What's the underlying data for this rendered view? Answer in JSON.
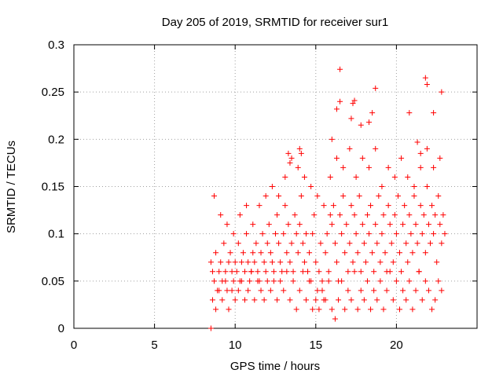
{
  "chart_data": {
    "type": "scatter",
    "title": "Day 205 of 2019, SRMTID for receiver sur1",
    "xlabel": "GPS time / hours",
    "ylabel": "SRMTID / TECUs",
    "xlim": [
      0,
      25
    ],
    "ylim": [
      0,
      0.3
    ],
    "xticks": [
      0,
      5,
      10,
      15,
      20
    ],
    "yticks": [
      0,
      0.05,
      0.1,
      0.15,
      0.2,
      0.25,
      0.3
    ],
    "xtick_labels": [
      "0",
      "5",
      "10",
      "15",
      "20"
    ],
    "ytick_labels": [
      "0",
      "0.05",
      "0.1",
      "0.15",
      "0.2",
      "0.25",
      "0.3"
    ],
    "grid": true,
    "marker": "+",
    "color": "#ff0000",
    "series": [
      {
        "name": "sur1",
        "x": [
          8.5,
          8.6,
          8.7,
          8.8,
          8.9,
          9.0,
          9.1,
          9.2,
          9.3,
          9.4,
          9.5,
          9.6,
          9.7,
          9.8,
          9.9,
          10.0,
          10.1,
          10.2,
          10.3,
          10.4,
          10.5,
          10.6,
          10.7,
          10.8,
          10.9,
          11.0,
          11.1,
          11.2,
          11.3,
          11.4,
          11.5,
          11.6,
          11.7,
          11.8,
          11.9,
          12.0,
          12.1,
          12.2,
          12.3,
          12.4,
          12.5,
          12.6,
          12.7,
          12.8,
          12.9,
          13.0,
          13.1,
          13.2,
          13.3,
          13.4,
          13.5,
          13.6,
          13.7,
          13.8,
          13.9,
          14.0,
          14.1,
          14.2,
          14.3,
          14.4,
          14.5,
          14.6,
          14.7,
          14.8,
          14.9,
          15.0,
          15.1,
          15.2,
          15.3,
          15.4,
          15.5,
          15.6,
          15.7,
          15.8,
          15.9,
          16.0,
          16.1,
          16.2,
          16.3,
          16.4,
          16.5,
          16.6,
          16.7,
          16.8,
          16.9,
          17.0,
          17.1,
          17.2,
          17.3,
          17.4,
          17.5,
          17.6,
          17.7,
          17.8,
          17.9,
          18.0,
          18.1,
          18.2,
          18.3,
          18.4,
          18.5,
          18.6,
          18.7,
          18.8,
          18.9,
          19.0,
          19.1,
          19.2,
          19.3,
          19.4,
          19.5,
          19.6,
          19.7,
          19.8,
          19.9,
          20.0,
          20.1,
          20.2,
          20.3,
          20.4,
          20.5,
          20.6,
          20.7,
          20.8,
          20.9,
          21.0,
          21.1,
          21.2,
          21.3,
          21.4,
          21.5,
          21.6,
          21.7,
          21.8,
          21.9,
          22.0,
          22.1,
          22.2,
          22.3,
          22.4,
          22.5,
          22.6,
          22.7,
          22.8,
          22.9,
          23.0,
          8.6,
          8.8,
          9.0,
          9.2,
          9.4,
          9.6,
          9.8,
          10.0,
          10.2,
          10.4,
          10.6,
          10.8,
          11.0,
          11.2,
          11.4,
          11.6,
          11.8,
          12.0,
          12.2,
          12.4,
          12.6,
          12.8,
          13.0,
          13.2,
          13.4,
          13.6,
          13.8,
          14.0,
          14.2,
          14.4,
          14.6,
          14.8,
          15.0,
          15.2,
          15.4,
          15.6,
          15.8,
          16.0,
          16.2,
          16.4,
          16.6,
          16.8,
          17.0,
          17.2,
          17.4,
          17.6,
          17.8,
          18.0,
          18.2,
          18.4,
          18.6,
          18.8,
          19.0,
          19.2,
          19.4,
          19.6,
          19.8,
          20.0,
          20.2,
          20.4,
          20.6,
          20.8,
          21.0,
          21.2,
          21.4,
          21.6,
          21.8,
          22.0,
          22.2,
          22.4,
          22.6,
          22.8,
          8.7,
          9.1,
          9.5,
          9.9,
          10.3,
          10.7,
          11.1,
          11.5,
          11.9,
          12.3,
          12.7,
          13.1,
          13.5,
          13.9,
          14.3,
          14.7,
          15.1,
          15.5,
          15.9,
          16.3,
          16.7,
          17.1,
          17.5,
          17.9,
          18.3,
          18.7,
          19.1,
          19.5,
          19.9,
          20.3,
          20.7,
          21.1,
          21.5,
          21.9,
          22.3,
          22.7,
          13.3,
          13.4,
          14.0,
          14.1,
          16.0,
          16.3,
          16.5,
          17.2,
          17.3,
          17.4,
          17.8,
          18.3,
          18.5,
          18.7,
          20.8,
          21.3,
          21.5,
          21.8,
          21.9,
          22.3,
          22.8,
          16.5,
          8.5
        ],
        "y": [
          0.07,
          0.06,
          0.05,
          0.08,
          0.04,
          0.06,
          0.07,
          0.05,
          0.09,
          0.06,
          0.04,
          0.07,
          0.08,
          0.06,
          0.05,
          0.07,
          0.06,
          0.09,
          0.05,
          0.07,
          0.08,
          0.06,
          0.1,
          0.07,
          0.05,
          0.06,
          0.08,
          0.07,
          0.09,
          0.06,
          0.05,
          0.08,
          0.1,
          0.07,
          0.06,
          0.09,
          0.11,
          0.08,
          0.07,
          0.05,
          0.1,
          0.12,
          0.09,
          0.07,
          0.06,
          0.1,
          0.13,
          0.08,
          0.11,
          0.07,
          0.09,
          0.06,
          0.12,
          0.1,
          0.08,
          0.11,
          0.14,
          0.09,
          0.07,
          0.1,
          0.06,
          0.08,
          0.05,
          0.1,
          0.12,
          0.07,
          0.04,
          0.06,
          0.09,
          0.05,
          0.03,
          0.08,
          0.1,
          0.06,
          0.12,
          0.11,
          0.13,
          0.09,
          0.07,
          0.05,
          0.12,
          0.1,
          0.14,
          0.08,
          0.11,
          0.06,
          0.09,
          0.13,
          0.07,
          0.12,
          0.1,
          0.08,
          0.14,
          0.06,
          0.11,
          0.09,
          0.07,
          0.12,
          0.1,
          0.13,
          0.08,
          0.06,
          0.11,
          0.09,
          0.14,
          0.07,
          0.1,
          0.12,
          0.08,
          0.06,
          0.13,
          0.11,
          0.09,
          0.07,
          0.12,
          0.1,
          0.14,
          0.08,
          0.06,
          0.11,
          0.13,
          0.09,
          0.07,
          0.12,
          0.1,
          0.08,
          0.14,
          0.11,
          0.09,
          0.06,
          0.13,
          0.1,
          0.12,
          0.08,
          0.15,
          0.11,
          0.09,
          0.13,
          0.1,
          0.12,
          0.07,
          0.14,
          0.11,
          0.09,
          0.12,
          0.1,
          0.03,
          0.02,
          0.04,
          0.03,
          0.05,
          0.02,
          0.04,
          0.03,
          0.04,
          0.05,
          0.03,
          0.04,
          0.06,
          0.03,
          0.05,
          0.04,
          0.03,
          0.05,
          0.04,
          0.06,
          0.03,
          0.05,
          0.04,
          0.06,
          0.03,
          0.05,
          0.02,
          0.04,
          0.06,
          0.03,
          0.05,
          0.02,
          0.03,
          0.02,
          0.04,
          0.03,
          0.05,
          0.02,
          0.01,
          0.03,
          0.05,
          0.02,
          0.04,
          0.03,
          0.06,
          0.02,
          0.04,
          0.03,
          0.05,
          0.02,
          0.04,
          0.03,
          0.05,
          0.02,
          0.04,
          0.06,
          0.03,
          0.05,
          0.02,
          0.04,
          0.03,
          0.05,
          0.02,
          0.04,
          0.06,
          0.03,
          0.05,
          0.04,
          0.02,
          0.03,
          0.05,
          0.04,
          0.14,
          0.12,
          0.11,
          0.1,
          0.12,
          0.13,
          0.11,
          0.13,
          0.14,
          0.15,
          0.14,
          0.16,
          0.18,
          0.17,
          0.16,
          0.15,
          0.14,
          0.13,
          0.16,
          0.18,
          0.17,
          0.19,
          0.16,
          0.18,
          0.17,
          0.19,
          0.15,
          0.17,
          0.16,
          0.18,
          0.16,
          0.15,
          0.17,
          0.19,
          0.17,
          0.18,
          0.185,
          0.175,
          0.19,
          0.185,
          0.2,
          0.232,
          0.24,
          0.222,
          0.238,
          0.241,
          0.215,
          0.218,
          0.228,
          0.254,
          0.228,
          0.197,
          0.185,
          0.265,
          0.258,
          0.228,
          0.25,
          0.274,
          0.0
        ]
      }
    ]
  }
}
